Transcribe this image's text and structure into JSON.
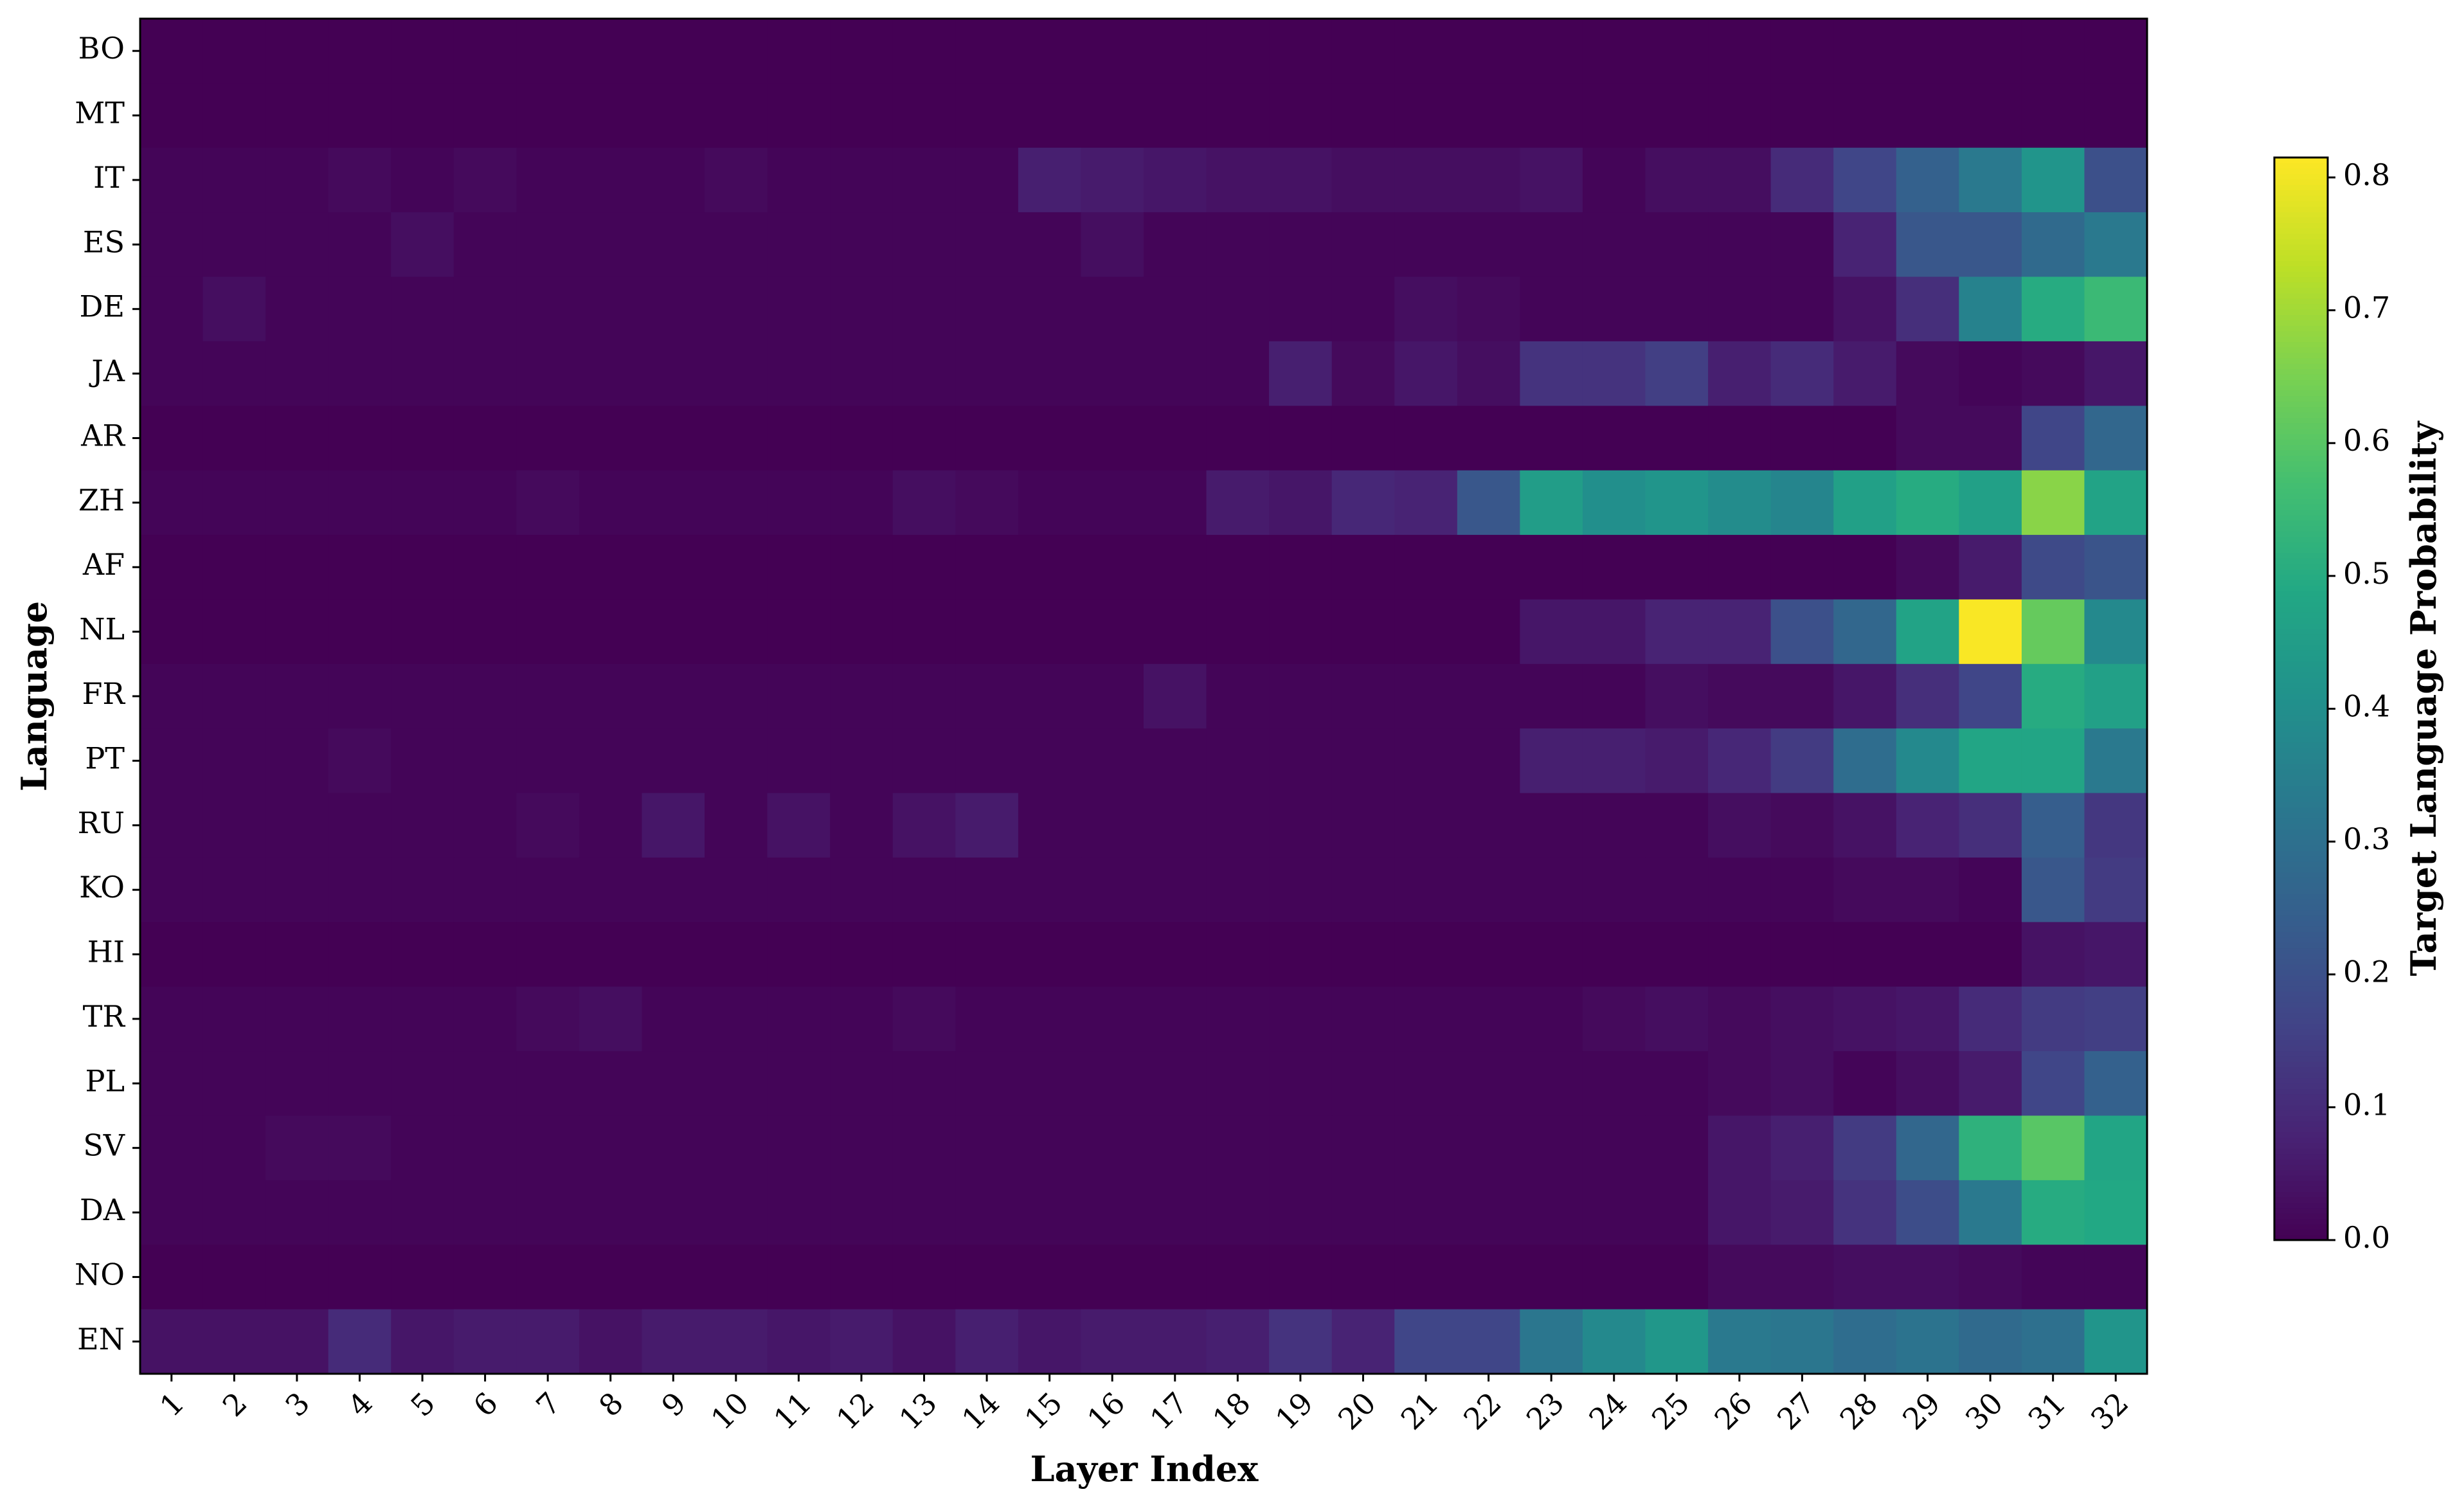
{
  "chart_data": {
    "type": "heatmap",
    "x_label": "Layer Index",
    "y_label": "Language",
    "colorbar_label": "Target Language Probability",
    "colormap": "viridis",
    "x_categories": [
      "1",
      "2",
      "3",
      "4",
      "5",
      "6",
      "7",
      "8",
      "9",
      "10",
      "11",
      "12",
      "13",
      "14",
      "15",
      "16",
      "17",
      "18",
      "19",
      "20",
      "21",
      "22",
      "23",
      "24",
      "25",
      "26",
      "27",
      "28",
      "29",
      "30",
      "31",
      "32"
    ],
    "y_categories": [
      "BO",
      "MT",
      "IT",
      "ES",
      "DE",
      "JA",
      "AR",
      "ZH",
      "AF",
      "NL",
      "FR",
      "PT",
      "RU",
      "KO",
      "HI",
      "TR",
      "PL",
      "SV",
      "DA",
      "NO",
      "EN"
    ],
    "values": [
      [
        0,
        0,
        0,
        0,
        0,
        0,
        0,
        0,
        0,
        0,
        0,
        0,
        0,
        0,
        0,
        0,
        0,
        0,
        0,
        0,
        0,
        0,
        0,
        0,
        0,
        0,
        0,
        0,
        0,
        0,
        0,
        0
      ],
      [
        0,
        0,
        0,
        0,
        0,
        0,
        0,
        0,
        0,
        0,
        0,
        0,
        0,
        0,
        0,
        0,
        0,
        0,
        0,
        0,
        0,
        0,
        0,
        0,
        0,
        0,
        0,
        0,
        0,
        0,
        0,
        0
      ],
      [
        0.01,
        0.01,
        0.01,
        0.02,
        0.01,
        0.02,
        0.01,
        0.01,
        0.01,
        0.02,
        0.01,
        0.01,
        0.01,
        0.01,
        0.07,
        0.06,
        0.05,
        0.04,
        0.04,
        0.03,
        0.03,
        0.03,
        0.04,
        0.01,
        0.03,
        0.03,
        0.1,
        0.17,
        0.25,
        0.33,
        0.42,
        0.2
      ],
      [
        0.01,
        0.01,
        0.01,
        0.01,
        0.03,
        0.01,
        0.01,
        0.01,
        0.01,
        0.01,
        0.01,
        0.01,
        0.01,
        0.01,
        0.01,
        0.03,
        0.01,
        0.01,
        0.01,
        0.01,
        0.01,
        0.01,
        0.01,
        0.01,
        0.01,
        0.01,
        0.01,
        0.08,
        0.22,
        0.22,
        0.28,
        0.33
      ],
      [
        0.01,
        0.03,
        0.01,
        0.01,
        0.01,
        0.01,
        0.01,
        0.01,
        0.01,
        0.01,
        0.01,
        0.01,
        0.01,
        0.01,
        0.01,
        0.01,
        0.01,
        0.01,
        0.01,
        0.01,
        0.03,
        0.02,
        0.01,
        0.01,
        0.01,
        0.01,
        0.01,
        0.04,
        0.11,
        0.36,
        0.5,
        0.55
      ],
      [
        0.01,
        0.01,
        0.01,
        0.01,
        0.01,
        0.01,
        0.01,
        0.01,
        0.01,
        0.01,
        0.01,
        0.01,
        0.01,
        0.01,
        0.01,
        0.01,
        0.01,
        0.01,
        0.07,
        0.02,
        0.05,
        0.03,
        0.12,
        0.12,
        0.15,
        0.07,
        0.1,
        0.06,
        0.02,
        0.01,
        0.02,
        0.05
      ],
      [
        0,
        0,
        0,
        0,
        0,
        0,
        0,
        0,
        0,
        0,
        0,
        0,
        0,
        0,
        0,
        0,
        0,
        0,
        0,
        0,
        0,
        0,
        0,
        0,
        0,
        0,
        0,
        0,
        0.02,
        0.02,
        0.17,
        0.27
      ],
      [
        0.01,
        0.01,
        0.01,
        0.01,
        0.01,
        0.01,
        0.02,
        0.01,
        0.01,
        0.01,
        0.01,
        0.01,
        0.03,
        0.02,
        0.01,
        0.01,
        0.01,
        0.06,
        0.05,
        0.09,
        0.08,
        0.22,
        0.45,
        0.4,
        0.42,
        0.39,
        0.37,
        0.46,
        0.5,
        0.46,
        0.67,
        0.47
      ],
      [
        0,
        0,
        0,
        0,
        0,
        0,
        0,
        0,
        0,
        0,
        0,
        0,
        0,
        0,
        0,
        0,
        0,
        0,
        0,
        0,
        0,
        0,
        0,
        0,
        0,
        0,
        0,
        0,
        0.02,
        0.06,
        0.18,
        0.21
      ],
      [
        0,
        0,
        0,
        0,
        0,
        0,
        0,
        0,
        0,
        0,
        0,
        0,
        0,
        0,
        0,
        0,
        0,
        0,
        0,
        0,
        0,
        0,
        0.05,
        0.05,
        0.08,
        0.08,
        0.2,
        0.27,
        0.47,
        0.81,
        0.62,
        0.38
      ],
      [
        0.01,
        0.01,
        0.01,
        0.01,
        0.01,
        0.01,
        0.01,
        0.01,
        0.01,
        0.01,
        0.01,
        0.01,
        0.01,
        0.01,
        0.01,
        0.01,
        0.04,
        0.01,
        0.01,
        0.01,
        0.01,
        0.01,
        0.01,
        0.01,
        0.03,
        0.02,
        0.02,
        0.05,
        0.11,
        0.17,
        0.5,
        0.46
      ],
      [
        0.01,
        0.01,
        0.01,
        0.02,
        0.01,
        0.01,
        0.01,
        0.01,
        0.01,
        0.01,
        0.01,
        0.01,
        0.01,
        0.01,
        0.01,
        0.01,
        0.01,
        0.01,
        0.01,
        0.01,
        0.01,
        0.01,
        0.07,
        0.07,
        0.06,
        0.09,
        0.14,
        0.29,
        0.38,
        0.48,
        0.48,
        0.33
      ],
      [
        0.01,
        0.01,
        0.01,
        0.01,
        0.01,
        0.01,
        0.02,
        0.01,
        0.05,
        0.01,
        0.04,
        0.01,
        0.04,
        0.06,
        0.01,
        0.01,
        0.01,
        0.01,
        0.01,
        0.01,
        0.01,
        0.01,
        0.01,
        0.01,
        0.01,
        0.03,
        0.02,
        0.04,
        0.08,
        0.11,
        0.24,
        0.13
      ],
      [
        0.01,
        0.01,
        0.01,
        0.01,
        0.01,
        0.01,
        0.01,
        0.01,
        0.01,
        0.01,
        0.01,
        0.01,
        0.01,
        0.01,
        0.01,
        0.01,
        0.01,
        0.01,
        0.01,
        0.01,
        0.01,
        0.01,
        0.01,
        0.01,
        0.01,
        0.01,
        0.01,
        0.02,
        0.02,
        0.01,
        0.22,
        0.14
      ],
      [
        0,
        0,
        0,
        0,
        0,
        0,
        0,
        0,
        0,
        0,
        0,
        0,
        0,
        0,
        0,
        0,
        0,
        0,
        0,
        0,
        0,
        0,
        0,
        0,
        0,
        0,
        0,
        0,
        0,
        0,
        0.04,
        0.05
      ],
      [
        0.01,
        0.01,
        0.01,
        0.01,
        0.01,
        0.01,
        0.02,
        0.03,
        0.01,
        0.01,
        0.01,
        0.01,
        0.02,
        0.01,
        0.01,
        0.01,
        0.01,
        0.01,
        0.01,
        0.01,
        0.01,
        0.01,
        0.01,
        0.02,
        0.03,
        0.02,
        0.03,
        0.04,
        0.05,
        0.1,
        0.14,
        0.15
      ],
      [
        0.01,
        0.01,
        0.01,
        0.01,
        0.01,
        0.01,
        0.01,
        0.01,
        0.01,
        0.01,
        0.01,
        0.01,
        0.01,
        0.01,
        0.01,
        0.01,
        0.01,
        0.01,
        0.01,
        0.01,
        0.01,
        0.01,
        0.01,
        0.01,
        0.01,
        0.02,
        0.03,
        0.01,
        0.03,
        0.06,
        0.17,
        0.25
      ],
      [
        0.01,
        0.01,
        0.02,
        0.02,
        0.01,
        0.01,
        0.01,
        0.01,
        0.01,
        0.01,
        0.01,
        0.01,
        0.01,
        0.01,
        0.01,
        0.01,
        0.01,
        0.01,
        0.01,
        0.01,
        0.01,
        0.01,
        0.01,
        0.01,
        0.01,
        0.05,
        0.07,
        0.14,
        0.27,
        0.52,
        0.6,
        0.48
      ],
      [
        0.01,
        0.01,
        0.01,
        0.01,
        0.01,
        0.01,
        0.01,
        0.01,
        0.01,
        0.01,
        0.01,
        0.01,
        0.01,
        0.01,
        0.01,
        0.01,
        0.01,
        0.01,
        0.01,
        0.01,
        0.01,
        0.01,
        0.01,
        0.01,
        0.01,
        0.05,
        0.06,
        0.12,
        0.19,
        0.33,
        0.5,
        0.49
      ],
      [
        0,
        0,
        0,
        0,
        0,
        0,
        0,
        0,
        0,
        0,
        0,
        0,
        0,
        0,
        0,
        0,
        0,
        0,
        0,
        0,
        0,
        0,
        0,
        0,
        0,
        0.02,
        0.02,
        0.03,
        0.03,
        0.02,
        0.01,
        0.01
      ],
      [
        0.04,
        0.04,
        0.04,
        0.1,
        0.05,
        0.06,
        0.06,
        0.04,
        0.06,
        0.06,
        0.05,
        0.06,
        0.04,
        0.07,
        0.05,
        0.06,
        0.06,
        0.07,
        0.12,
        0.08,
        0.17,
        0.17,
        0.32,
        0.38,
        0.43,
        0.33,
        0.32,
        0.29,
        0.31,
        0.28,
        0.3,
        0.42
      ]
    ],
    "zlim": [
      0,
      0.815
    ],
    "zticks": [
      {
        "value": 0,
        "label": "0.0"
      },
      0.1,
      0.2,
      0.3,
      0.4,
      0.5,
      0.6,
      0.7,
      0.8
    ]
  }
}
